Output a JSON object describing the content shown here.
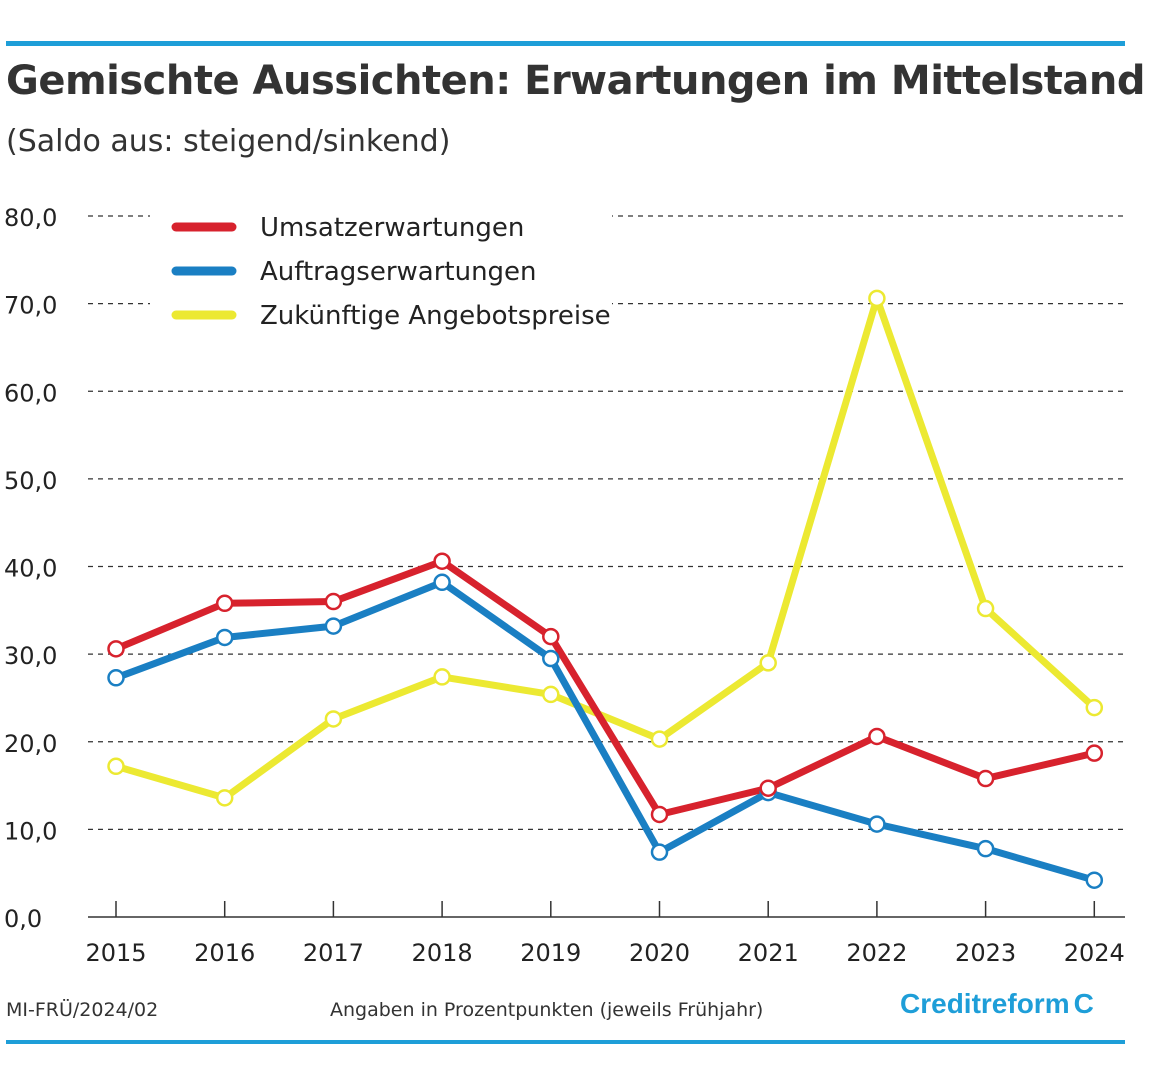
{
  "header": {
    "title": "Gemischte Aussichten: Erwartungen im Mittelstand",
    "subtitle": "(Saldo aus: steigend/sinkend)"
  },
  "footer": {
    "code": "MI-FRÜ/2024/02",
    "note": "Angaben in Prozentpunkten (jeweils Frühjahr)",
    "logo_text": "Creditreform",
    "logo_mark": "C"
  },
  "colors": {
    "accent": "#1e9ed8",
    "red": "#d7222d",
    "blue": "#1a7fc3",
    "yellow": "#ece932"
  },
  "chart_data": {
    "type": "line",
    "title": "Gemischte Aussichten: Erwartungen im Mittelstand",
    "subtitle": "(Saldo aus: steigend/sinkend)",
    "x": [
      "2015",
      "2016",
      "2017",
      "2018",
      "2019",
      "2020",
      "2021",
      "2022",
      "2023",
      "2024"
    ],
    "ylim": [
      0,
      80
    ],
    "yticks": [
      "0,0",
      "10,0",
      "20,0",
      "30,0",
      "40,0",
      "50,0",
      "60,0",
      "70,0",
      "80,0"
    ],
    "grid": true,
    "legend_position": "top-left",
    "series": [
      {
        "name": "Umsatzerwartungen",
        "color": "#d7222d",
        "values": [
          30.6,
          35.8,
          36.0,
          40.6,
          32.0,
          11.7,
          14.7,
          20.6,
          15.8,
          18.7
        ]
      },
      {
        "name": "Auftragserwartungen",
        "color": "#1a7fc3",
        "values": [
          27.3,
          31.9,
          33.2,
          38.2,
          29.5,
          7.4,
          14.2,
          10.6,
          7.8,
          4.2
        ]
      },
      {
        "name": "Zukünftige Angebotspreise",
        "color": "#ece932",
        "values": [
          17.2,
          13.6,
          22.6,
          27.4,
          25.4,
          20.3,
          29.0,
          70.6,
          35.2,
          23.9
        ]
      }
    ]
  }
}
